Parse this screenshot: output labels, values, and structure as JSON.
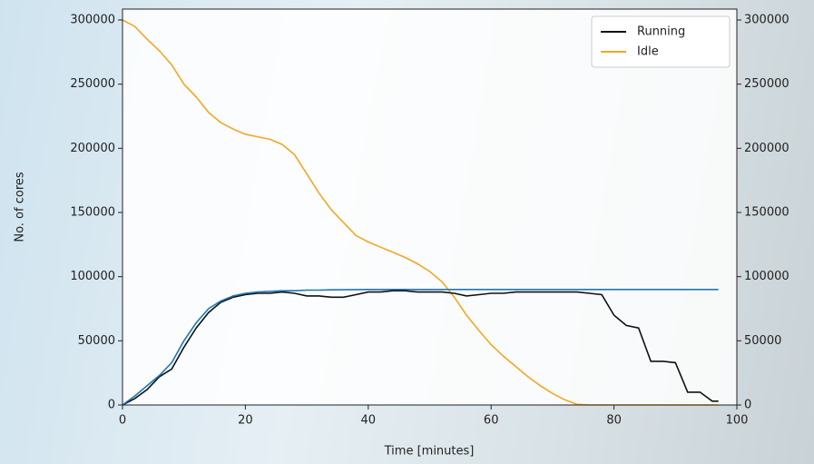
{
  "chart_data": {
    "type": "line",
    "xlabel": "Time [minutes]",
    "ylabel": "No. of cores",
    "x": [
      0,
      2,
      4,
      6,
      8,
      10,
      12,
      14,
      16,
      18,
      20,
      22,
      24,
      26,
      28,
      30,
      32,
      34,
      36,
      38,
      40,
      42,
      44,
      46,
      48,
      50,
      52,
      54,
      56,
      58,
      60,
      62,
      64,
      66,
      68,
      70,
      72,
      74,
      76,
      78,
      80,
      82,
      84,
      86,
      88,
      90,
      92,
      94,
      96,
      97
    ],
    "series": [
      {
        "name": "Running",
        "color": "#111111",
        "values": [
          0,
          5000,
          12000,
          22000,
          28000,
          45000,
          60000,
          72000,
          80000,
          84000,
          86000,
          87000,
          87000,
          88000,
          87000,
          85000,
          85000,
          84000,
          84000,
          86000,
          88000,
          88000,
          89000,
          89000,
          88000,
          88000,
          88000,
          87000,
          85000,
          86000,
          87000,
          87000,
          88000,
          88000,
          88000,
          88000,
          88000,
          88000,
          87000,
          86000,
          70000,
          62000,
          60000,
          34000,
          34000,
          33000,
          10000,
          10000,
          3000,
          3000
        ]
      },
      {
        "name": "Idle",
        "color": "#f5a623",
        "values": [
          300000,
          295000,
          285000,
          276000,
          265000,
          250000,
          240000,
          228000,
          220000,
          215000,
          211000,
          209000,
          207000,
          203000,
          195000,
          180000,
          165000,
          152000,
          142000,
          132000,
          127000,
          123000,
          119000,
          115000,
          110000,
          104000,
          96000,
          84000,
          70000,
          58000,
          47000,
          38000,
          30000,
          22000,
          15000,
          9000,
          4000,
          500,
          0,
          0,
          0,
          0,
          0,
          0,
          0,
          0,
          0,
          0,
          0,
          0
        ]
      },
      {
        "color": "#1f77b4",
        "values": [
          0,
          7000,
          15000,
          23000,
          33000,
          50000,
          64000,
          75000,
          81000,
          85000,
          87000,
          88000,
          88500,
          89000,
          89000,
          89500,
          89500,
          89700,
          89800,
          89900,
          90000,
          90000,
          90000,
          90000,
          90000,
          90000,
          90000,
          90000,
          90000,
          90000,
          90000,
          90000,
          90000,
          90000,
          90000,
          90000,
          90000,
          90000,
          90000,
          90000,
          90000,
          90000,
          90000,
          90000,
          90000,
          90000,
          90000,
          90000,
          90000,
          90000
        ]
      }
    ],
    "xlim": [
      0,
      100
    ],
    "xticks": [
      0,
      20,
      40,
      60,
      80,
      100
    ],
    "ylim": [
      0,
      308500
    ],
    "yticks": [
      0,
      50000,
      100000,
      150000,
      200000,
      250000,
      300000
    ],
    "y2lim": [
      0,
      308500
    ],
    "y2ticks": [
      0,
      50000,
      100000,
      150000,
      200000,
      250000,
      300000
    ],
    "legend": "upper right"
  }
}
